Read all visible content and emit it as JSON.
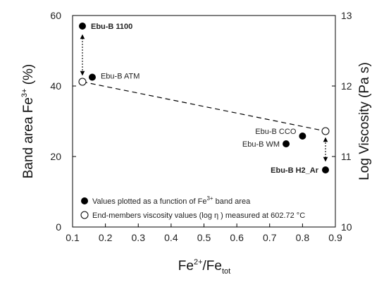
{
  "chart_data": {
    "type": "scatter",
    "xlabel": "Fe2+/Fetot",
    "ylabel_left": "Band area Fe3+ (%)",
    "ylabel_right": "Log Viscosity (Pa s)",
    "xlim": [
      0.1,
      0.9
    ],
    "ylim_left": [
      0,
      60
    ],
    "ylim_right": [
      10,
      13
    ],
    "x_ticks": [
      "0.1",
      "0.2",
      "0.3",
      "0.4",
      "0.5",
      "0.6",
      "0.7",
      "0.8",
      "0.9"
    ],
    "y_left_ticks": [
      "0",
      "20",
      "40",
      "60"
    ],
    "y_right_ticks": [
      "10",
      "11",
      "12",
      "13"
    ],
    "series": [
      {
        "name": "Values plotted as a function of Fe3+ band area",
        "marker": "filled-circle",
        "points": [
          {
            "label": "Ebu-B 1100",
            "x": 0.13,
            "y": 57,
            "bold": true
          },
          {
            "label": "Ebu-B ATM",
            "x": 0.16,
            "y": 42.5,
            "bold": false
          },
          {
            "label": "Ebu-B CCO",
            "x": 0.8,
            "y": 25.8,
            "bold": false
          },
          {
            "label": "Ebu-B WM",
            "x": 0.75,
            "y": 23.6,
            "bold": false
          },
          {
            "label": "Ebu-B H2_Ar",
            "x": 0.87,
            "y": 16.2,
            "bold": true
          }
        ]
      },
      {
        "name": "End-members viscosity values (log η ) measured at 602.72 °C",
        "marker": "open-circle",
        "points": [
          {
            "x": 0.13,
            "y_right": 12.06
          },
          {
            "x": 0.87,
            "y_right": 11.36
          }
        ]
      }
    ],
    "trend_line": {
      "style": "dashed",
      "from": [
        0.13,
        12.06
      ],
      "to": [
        0.87,
        11.36
      ]
    },
    "arrows": [
      {
        "x": 0.13,
        "from_y": 57,
        "to_y_right": 12.06,
        "style": "dotted-double"
      },
      {
        "x": 0.87,
        "from_y": 16.2,
        "to_y_right": 11.36,
        "style": "dotted-double"
      }
    ],
    "grid": false,
    "legend_placement": "bottom-left"
  },
  "labels": {
    "x_main": "Fe",
    "x_sup": "2+",
    "x_mid": "/Fe",
    "x_sub": "tot",
    "yl_main": "Band area Fe",
    "yl_sup": "3+",
    "yl_end": " (%)",
    "yr_text": "Log Viscosity (Pa s)"
  },
  "legend": {
    "filled_pre": "Values plotted as a function of Fe",
    "filled_sup": "3+",
    "filled_post": " band area",
    "open_text": "End-members viscosity values (log η ) measured at 602.72 °C"
  }
}
